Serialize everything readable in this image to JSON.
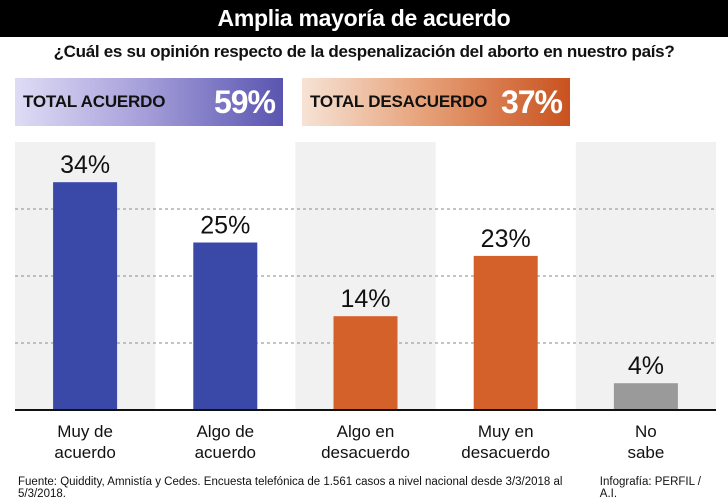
{
  "title": "Amplia mayoría de acuerdo",
  "question": "¿Cuál es su opinión respecto de la despenalización del aborto en nuestro país?",
  "totals": {
    "agree": {
      "label": "TOTAL ACUERDO",
      "value": "59%"
    },
    "disagree": {
      "label": "TOTAL DESACUERDO",
      "value": "37%"
    }
  },
  "chart_data": {
    "type": "bar",
    "categories": [
      [
        "Muy de",
        "acuerdo"
      ],
      [
        "Algo de",
        "acuerdo"
      ],
      [
        "Algo en",
        "desacuerdo"
      ],
      [
        "Muy en",
        "desacuerdo"
      ],
      [
        "No",
        "sabe"
      ]
    ],
    "values": [
      34,
      25,
      14,
      23,
      4
    ],
    "value_labels": [
      "34%",
      "25%",
      "14%",
      "23%",
      "4%"
    ],
    "bar_colors": [
      "#3a48a8",
      "#3a48a8",
      "#d4612a",
      "#d4612a",
      "#9a9a9a"
    ],
    "ylim": [
      0,
      40
    ],
    "grid": true
  },
  "footer": {
    "source": "Fuente: Quiddity, Amnistía y Cedes. Encuesta telefónica de 1.561 casos a nivel nacional desde 3/3/2018 al 5/3/2018.",
    "credit": "Infografía: PERFIL / A.I."
  }
}
